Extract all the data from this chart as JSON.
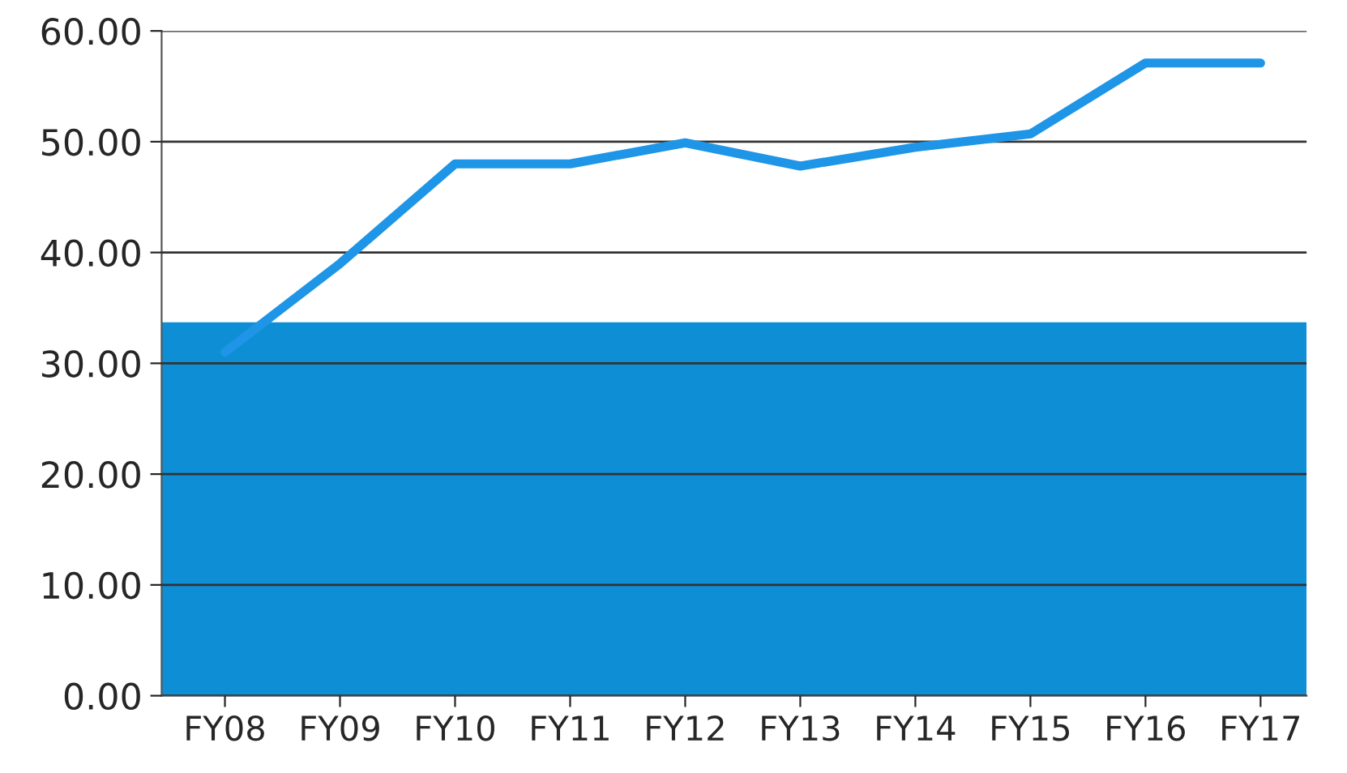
{
  "chart_data": {
    "type": "line",
    "categories": [
      "FY08",
      "FY09",
      "FY10",
      "FY11",
      "FY12",
      "FY13",
      "FY14",
      "FY15",
      "FY16",
      "FY17"
    ],
    "series": [
      {
        "color": "#1e95e6",
        "values": [
          31,
          39,
          48,
          48,
          49.9,
          47.8,
          49.5,
          50.7,
          57.1,
          57.1
        ]
      }
    ],
    "ylim": [
      0,
      60
    ],
    "yticks": [
      {
        "value": 0,
        "label": "0.00"
      },
      {
        "value": 10,
        "label": "10.00"
      },
      {
        "value": 20,
        "label": "20.00"
      },
      {
        "value": 30,
        "label": "30.00"
      },
      {
        "value": 40,
        "label": "40.00"
      },
      {
        "value": 50,
        "label": "50.00"
      },
      {
        "value": 60,
        "label": "60.00"
      }
    ],
    "grid": "y",
    "marker": "none",
    "line_style": "solid",
    "bands": [
      {
        "axis": "y",
        "from": 0,
        "to": 33.7,
        "color": "#0e8fd5"
      }
    ]
  }
}
